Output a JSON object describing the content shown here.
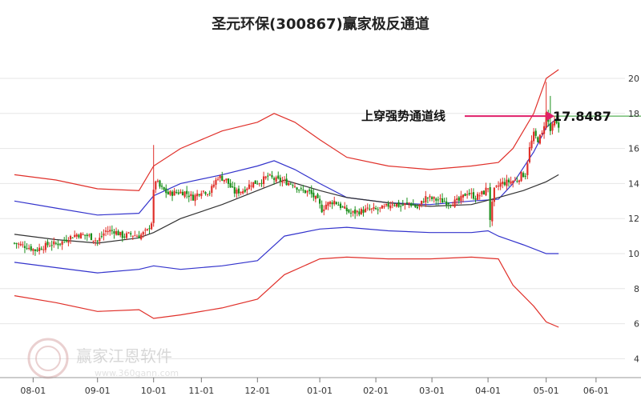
{
  "chart_data": {
    "type": "line",
    "title": "圣元环保(300867)赢家极反通道",
    "xlabel": "",
    "ylabel": "",
    "ylim": [
      4,
      21
    ],
    "yticks": [
      4,
      6,
      8,
      10,
      12,
      14,
      16,
      18,
      20
    ],
    "x_tick_labels": [
      "08-01",
      "09-01",
      "10-01",
      "11-01",
      "12-01",
      "01-01",
      "02-01",
      "03-01",
      "04-01",
      "05-01",
      "06-01"
    ],
    "grid": true,
    "x_tick_index": [
      9,
      40,
      67,
      90,
      117,
      147,
      174,
      201,
      228,
      256,
      280
    ],
    "series": [
      {
        "role": "outer-upper",
        "color": "#e0302a",
        "x": [
          0,
          20,
          40,
          60,
          67,
          80,
          100,
          117,
          125,
          135,
          147,
          160,
          180,
          200,
          220,
          233,
          240,
          250,
          256,
          262
        ],
        "y": [
          14.5,
          14.2,
          13.7,
          13.6,
          15.0,
          16.0,
          17.0,
          17.5,
          18.0,
          17.5,
          16.5,
          15.5,
          15.0,
          14.8,
          15.0,
          15.2,
          16.0,
          18.0,
          20.0,
          20.5
        ]
      },
      {
        "role": "inner-upper",
        "color": "#3333cc",
        "x": [
          0,
          20,
          40,
          60,
          67,
          80,
          100,
          117,
          125,
          135,
          147,
          160,
          180,
          200,
          220,
          233,
          240,
          250,
          256,
          262
        ],
        "y": [
          13.0,
          12.6,
          12.2,
          12.3,
          13.3,
          14.0,
          14.5,
          15.0,
          15.3,
          14.8,
          14.0,
          13.2,
          12.9,
          12.8,
          13.0,
          13.1,
          14.0,
          15.8,
          17.2,
          17.8
        ]
      },
      {
        "role": "middle",
        "color": "#333333",
        "x": [
          0,
          20,
          40,
          60,
          67,
          80,
          100,
          117,
          130,
          147,
          160,
          180,
          200,
          220,
          233,
          245,
          256,
          262
        ],
        "y": [
          11.1,
          10.8,
          10.6,
          10.9,
          11.2,
          12.0,
          12.8,
          13.6,
          14.2,
          13.6,
          13.2,
          12.9,
          12.7,
          12.8,
          13.2,
          13.6,
          14.1,
          14.5
        ]
      },
      {
        "role": "inner-lower",
        "color": "#3333cc",
        "x": [
          0,
          20,
          40,
          60,
          67,
          80,
          100,
          117,
          130,
          147,
          160,
          180,
          200,
          220,
          228,
          233,
          245,
          256,
          262
        ],
        "y": [
          9.5,
          9.2,
          8.9,
          9.1,
          9.3,
          9.1,
          9.3,
          9.6,
          11.0,
          11.4,
          11.5,
          11.3,
          11.2,
          11.2,
          11.3,
          11.0,
          10.5,
          10.0,
          10.0
        ]
      },
      {
        "role": "outer-lower",
        "color": "#e0302a",
        "x": [
          0,
          20,
          40,
          60,
          67,
          80,
          100,
          117,
          130,
          147,
          160,
          180,
          200,
          220,
          233,
          240,
          250,
          256,
          262
        ],
        "y": [
          7.6,
          7.2,
          6.7,
          6.8,
          6.3,
          6.5,
          6.9,
          7.4,
          8.8,
          9.7,
          9.8,
          9.7,
          9.7,
          9.8,
          9.7,
          8.2,
          7.0,
          6.1,
          5.8
        ]
      }
    ],
    "candles": {
      "up_color": "#e0302a",
      "down_color": "#1a8f1a",
      "close_path_x": [
        0,
        6,
        10,
        16,
        22,
        26,
        30,
        36,
        40,
        44,
        48,
        52,
        56,
        60,
        64,
        66,
        67,
        68,
        70,
        74,
        78,
        82,
        86,
        90,
        94,
        98,
        102,
        104,
        106,
        110,
        114,
        118,
        122,
        126,
        130,
        134,
        138,
        142,
        146,
        148,
        150,
        154,
        158,
        162,
        166,
        170,
        174,
        178,
        182,
        186,
        190,
        194,
        198,
        202,
        206,
        210,
        214,
        218,
        222,
        226,
        228,
        229,
        231,
        234,
        238,
        242,
        244,
        246,
        248,
        250,
        252,
        254,
        256,
        258,
        260,
        262
      ],
      "close_path_y": [
        10.6,
        10.4,
        10.2,
        10.5,
        10.6,
        10.9,
        11.1,
        11.0,
        10.7,
        11.3,
        11.3,
        11.0,
        11.1,
        11.0,
        11.3,
        11.8,
        13.5,
        14.2,
        13.8,
        13.4,
        13.5,
        13.5,
        13.2,
        13.6,
        13.5,
        14.4,
        14.2,
        13.8,
        13.5,
        13.6,
        14.0,
        14.1,
        14.4,
        14.2,
        14.1,
        14.0,
        13.6,
        13.5,
        13.0,
        12.5,
        12.8,
        13.0,
        12.6,
        12.3,
        12.4,
        12.5,
        12.5,
        12.6,
        12.9,
        12.7,
        12.9,
        12.6,
        13.2,
        13.1,
        13.0,
        12.9,
        13.0,
        13.5,
        13.2,
        13.5,
        13.8,
        12.0,
        13.6,
        14.0,
        14.1,
        14.2,
        14.5,
        14.5,
        16.0,
        16.8,
        16.5,
        16.8,
        18.0,
        17.0,
        17.5,
        17.2
      ]
    },
    "annotations": [
      {
        "text": "上穿强势通道线",
        "value": "17.8487",
        "price": 17.8487
      }
    ]
  },
  "watermark": {
    "brand": "赢家江恩软件",
    "site": "www.360gann.com"
  },
  "colors": {
    "grid": "#e6e6e6",
    "arrow": "#e0206a",
    "refline": "#2e9e2e",
    "axis_text": "#333333"
  }
}
